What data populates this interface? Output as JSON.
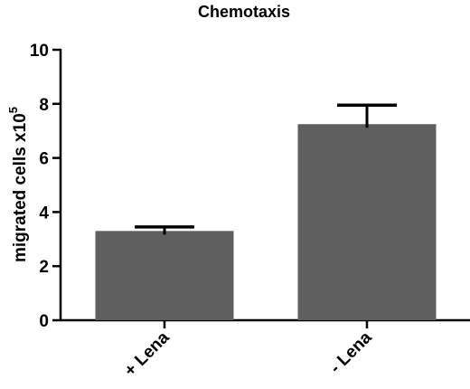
{
  "chart_data": {
    "type": "bar",
    "title": "Chemotaxis",
    "ylabel": "migrated cells x10",
    "ylabel_superscript": "5",
    "xlabel": "",
    "categories": [
      "+ Lena",
      "- Lena"
    ],
    "values": [
      3.3,
      7.25
    ],
    "error_upper": [
      3.45,
      7.95
    ],
    "ylim": [
      0,
      10
    ],
    "yticks": [
      0,
      2,
      4,
      6,
      8,
      10
    ],
    "grid": false,
    "legend": "none",
    "bar_color": "#5f5f5f"
  }
}
